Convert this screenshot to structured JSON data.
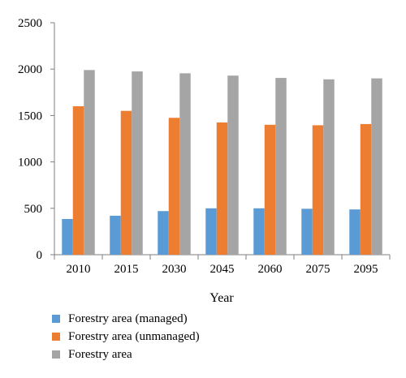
{
  "chart_data": {
    "type": "bar",
    "categories": [
      "2010",
      "2015",
      "2030",
      "2045",
      "2060",
      "2075",
      "2095"
    ],
    "series": [
      {
        "name": "Forestry area (managed)",
        "color": "#5b9bd5",
        "values": [
          385,
          420,
          470,
          500,
          500,
          495,
          488
        ]
      },
      {
        "name": "Forestry area (unmanaged)",
        "color": "#ed7d31",
        "values": [
          1600,
          1550,
          1475,
          1425,
          1400,
          1395,
          1408
        ]
      },
      {
        "name": "Forestry area",
        "color": "#a5a5a5",
        "values": [
          1990,
          1975,
          1955,
          1930,
          1905,
          1890,
          1900
        ]
      }
    ],
    "xlabel": "Year",
    "ylabel": "",
    "ylim": [
      0,
      2500
    ],
    "yticks": [
      0,
      500,
      1000,
      1500,
      2000,
      2500
    ],
    "grid": false,
    "legend": "bottom-left"
  }
}
